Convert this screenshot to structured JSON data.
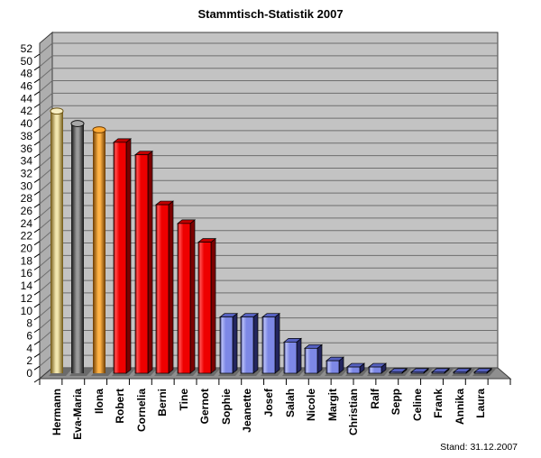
{
  "page": {
    "background": "#ffffff"
  },
  "chart_data": {
    "type": "bar",
    "title": "Stammtisch-Statistik 2007",
    "footnote": "Stand: 31.12.2007",
    "xlabel": "",
    "ylabel": "",
    "ylim": [
      0,
      52
    ],
    "ytick_step": 2,
    "grid": true,
    "legend": false,
    "style_3d": true,
    "wall_color": "#c3c3c3",
    "side_wall_color": "#aeaeae",
    "floor_color": "#8f8f8f",
    "grid_color": "#6e6e6e",
    "outline_color": "#3c3c3c",
    "shadow_color": "#4f4f4f",
    "categories": [
      "Hermann",
      "Eva-Maria",
      "Ilona",
      "Robert",
      "Cornelia",
      "Berni",
      "Tine",
      "Gernot",
      "Sophie",
      "Jeanette",
      "Josef",
      "Salah",
      "Nicole",
      "Margit",
      "Christian",
      "Ralf",
      "Sepp",
      "Celine",
      "Frank",
      "Annika",
      "Laura"
    ],
    "values": [
      42,
      40,
      39,
      37,
      35,
      27,
      24,
      21,
      9,
      9,
      9,
      5,
      4,
      2,
      1,
      1,
      0,
      0,
      0,
      0,
      0
    ],
    "bar_colors": [
      "gold",
      "black",
      "orange",
      "red",
      "red",
      "red",
      "red",
      "red",
      "blue",
      "blue",
      "blue",
      "blue",
      "blue",
      "blue",
      "blue",
      "blue",
      "blue",
      "blue",
      "blue",
      "blue",
      "blue"
    ],
    "bar_shapes": [
      "cylinder",
      "cylinder",
      "cylinder",
      "box",
      "box",
      "box",
      "box",
      "box",
      "box",
      "box",
      "box",
      "box",
      "box",
      "box",
      "box",
      "box",
      "box",
      "box",
      "box",
      "box",
      "box"
    ],
    "palette": {
      "gold": {
        "edge": "#6e5513",
        "mid": "#f2e6ae",
        "cap": "#f7eec2"
      },
      "black": {
        "edge": "#141414",
        "mid": "#9a9a9a",
        "cap": "#a8a8a8"
      },
      "orange": {
        "edge": "#6b3a00",
        "mid": "#ffb347",
        "cap": "#ffaa33"
      },
      "red": {
        "face": "#ee0000",
        "light": "#ff4c4c",
        "side": "#7c0000",
        "top": "#c00000"
      },
      "blue": {
        "face": "#7d88e6",
        "light": "#b4bcf6",
        "side": "#23255e",
        "top": "#5560c0"
      }
    }
  }
}
